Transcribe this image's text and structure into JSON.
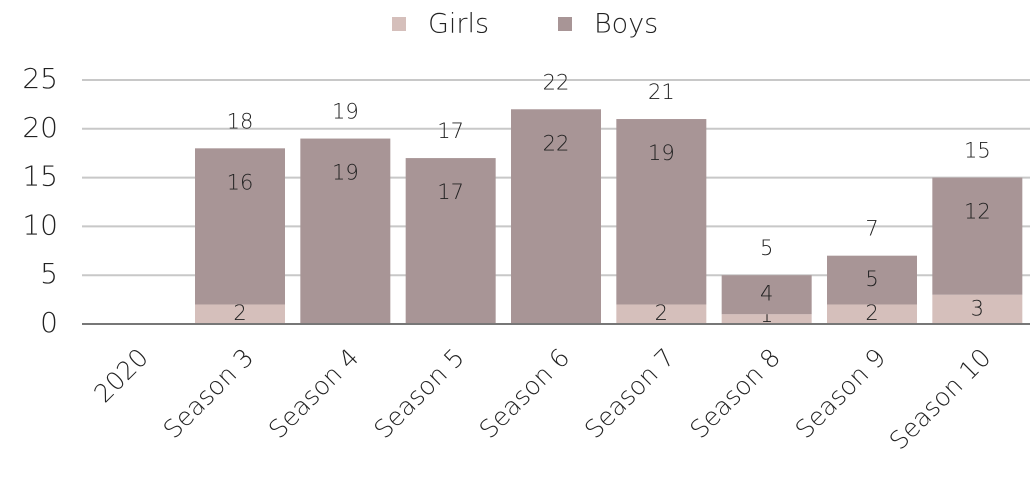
{
  "chart_data": {
    "type": "stacked_bar",
    "categories": [
      "2020",
      "Season 3",
      "Season 4",
      "Season 5",
      "Season 6",
      "Season 7",
      "Season 8",
      "Season 9",
      "Season 10"
    ],
    "series": [
      {
        "name": "Girls",
        "color": "#d5bfbb",
        "values": [
          null,
          2,
          0,
          0,
          0,
          2,
          1,
          2,
          3
        ]
      },
      {
        "name": "Boys",
        "color": "#a89596",
        "values": [
          null,
          16,
          19,
          17,
          22,
          19,
          4,
          5,
          12
        ]
      }
    ],
    "totals": [
      null,
      18,
      19,
      17,
      22,
      21,
      5,
      7,
      15
    ],
    "ylim": [
      0,
      25
    ],
    "yticks": [
      0,
      5,
      10,
      15,
      20,
      25
    ],
    "grid": true,
    "legend": "top"
  }
}
